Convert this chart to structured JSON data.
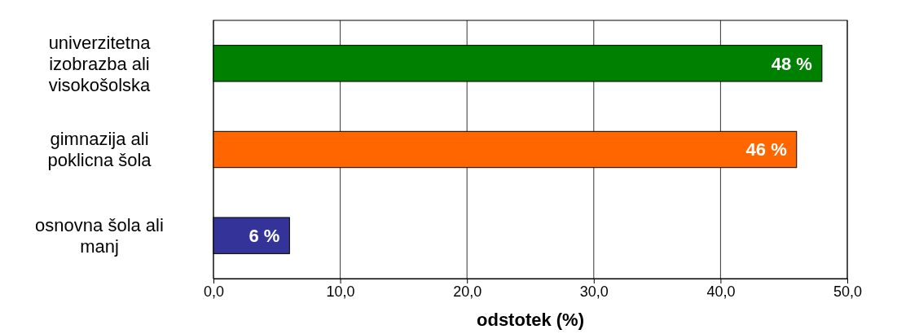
{
  "chart_data": {
    "type": "bar",
    "orientation": "horizontal",
    "categories": [
      "univerzitetna izobrazba ali visokošolska",
      "gimnazija ali poklicna šola",
      "osnovna šola ali manj"
    ],
    "values": [
      48,
      46,
      6
    ],
    "colors": [
      "#008000",
      "#ff6600",
      "#333399"
    ],
    "value_labels": [
      "48 %",
      "46 %",
      "6 %"
    ],
    "xlim": [
      0,
      50
    ],
    "xticks": [
      {
        "value": 0,
        "label": "0,0"
      },
      {
        "value": 10,
        "label": "10,0"
      },
      {
        "value": 20,
        "label": "20,0"
      },
      {
        "value": 30,
        "label": "30,0"
      },
      {
        "value": 40,
        "label": "40,0"
      },
      {
        "value": 50,
        "label": "50,0"
      }
    ],
    "xlabel": "odstotek (%)",
    "grid": "x"
  }
}
